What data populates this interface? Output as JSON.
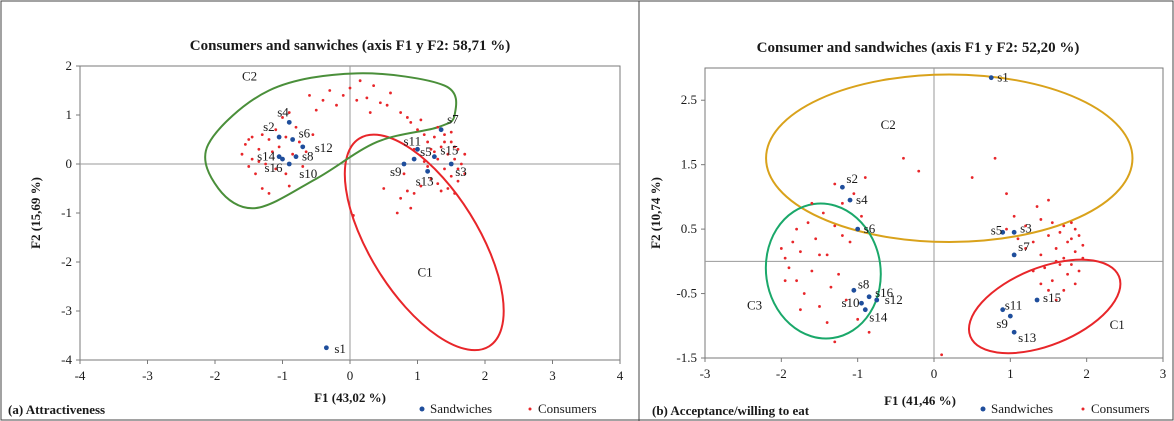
{
  "panels": [
    {
      "caption": "(a) Attractiveness",
      "legend": [
        "Sandwiches",
        "Consumers"
      ]
    },
    {
      "caption": "(b) Acceptance/willing to eat",
      "legend": [
        "Sandwiches",
        "Consumers"
      ]
    }
  ],
  "colors": {
    "sandwich": "#1f4e9c",
    "consumer": "#e8262a",
    "c1a": "#e8262a",
    "c2a": "#4a8f3a",
    "c1b": "#e8262a",
    "c2b": "#d9a21b",
    "c3b": "#1aa86a"
  },
  "chart_data": [
    {
      "type": "scatter",
      "title": "Consumers and sanwiches (axis F1 y F2: 58,71 %)",
      "xlabel": "F1 (43,02 %)",
      "ylabel": "F2 (15,69 %)",
      "xlim": [
        -4,
        4
      ],
      "ylim": [
        -4,
        2
      ],
      "xticks": [
        "-4",
        "-3",
        "-2",
        "-1",
        "0",
        "1",
        "2",
        "3",
        "4"
      ],
      "yticks": [
        "2",
        "1",
        "0",
        "-1",
        "-2",
        "-3",
        "-4"
      ],
      "legend": "bottom-right",
      "series": [
        {
          "name": "Sandwiches",
          "points": [
            {
              "label": "s1",
              "x": -0.35,
              "y": -3.75
            },
            {
              "label": "s2",
              "x": -1.05,
              "y": 0.55
            },
            {
              "label": "s3",
              "x": 1.5,
              "y": 0.0
            },
            {
              "label": "s4",
              "x": -0.9,
              "y": 0.85
            },
            {
              "label": "s5",
              "x": 0.95,
              "y": 0.1
            },
            {
              "label": "s6",
              "x": -0.85,
              "y": 0.5
            },
            {
              "label": "s7",
              "x": 1.35,
              "y": 0.7
            },
            {
              "label": "s8",
              "x": -0.8,
              "y": 0.15
            },
            {
              "label": "s9",
              "x": 0.8,
              "y": 0.0
            },
            {
              "label": "s10",
              "x": -0.9,
              "y": 0.0
            },
            {
              "label": "s11",
              "x": 1.0,
              "y": 0.3
            },
            {
              "label": "s12",
              "x": -0.7,
              "y": 0.35
            },
            {
              "label": "s13",
              "x": 1.15,
              "y": -0.15
            },
            {
              "label": "s14",
              "x": -1.05,
              "y": 0.15
            },
            {
              "label": "s15",
              "x": 1.25,
              "y": 0.15
            },
            {
              "label": "s16",
              "x": -1.0,
              "y": 0.1
            }
          ]
        },
        {
          "name": "Consumers",
          "points": [
            [
              -1.6,
              0.2
            ],
            [
              -1.55,
              0.4
            ],
            [
              -1.5,
              0.5
            ],
            [
              -1.45,
              0.1
            ],
            [
              -1.4,
              -0.2
            ],
            [
              -1.35,
              0.3
            ],
            [
              -1.3,
              0.6
            ],
            [
              -1.3,
              -0.5
            ],
            [
              -1.25,
              0.0
            ],
            [
              -1.2,
              0.5
            ],
            [
              -1.2,
              -0.6
            ],
            [
              -1.15,
              0.25
            ],
            [
              -1.1,
              0.7
            ],
            [
              -1.1,
              -0.1
            ],
            [
              -1.05,
              0.35
            ],
            [
              -1.0,
              0.95
            ],
            [
              -0.95,
              0.55
            ],
            [
              -0.95,
              -0.2
            ],
            [
              -0.9,
              1.05
            ],
            [
              -0.85,
              0.2
            ],
            [
              -0.8,
              0.75
            ],
            [
              -0.75,
              0.45
            ],
            [
              -0.7,
              -0.05
            ],
            [
              -0.6,
              1.4
            ],
            [
              -0.5,
              1.1
            ],
            [
              -0.4,
              1.3
            ],
            [
              -0.3,
              1.5
            ],
            [
              -0.2,
              1.2
            ],
            [
              -0.1,
              1.4
            ],
            [
              0.0,
              1.55
            ],
            [
              0.1,
              1.3
            ],
            [
              0.15,
              1.7
            ],
            [
              0.25,
              1.35
            ],
            [
              0.3,
              1.05
            ],
            [
              0.35,
              1.6
            ],
            [
              0.45,
              1.25
            ],
            [
              0.55,
              1.2
            ],
            [
              0.6,
              1.45
            ],
            [
              0.75,
              1.05
            ],
            [
              0.85,
              0.95
            ],
            [
              0.9,
              0.85
            ],
            [
              1.0,
              0.7
            ],
            [
              1.05,
              0.9
            ],
            [
              1.1,
              0.6
            ],
            [
              1.15,
              0.45
            ],
            [
              1.2,
              0.3
            ],
            [
              1.2,
              -0.3
            ],
            [
              1.25,
              0.55
            ],
            [
              1.3,
              0.1
            ],
            [
              1.3,
              -0.4
            ],
            [
              1.35,
              0.35
            ],
            [
              1.4,
              0.6
            ],
            [
              1.4,
              -0.1
            ],
            [
              1.45,
              0.2
            ],
            [
              1.45,
              -0.5
            ],
            [
              1.5,
              0.45
            ],
            [
              1.5,
              -0.25
            ],
            [
              1.55,
              0.1
            ],
            [
              1.55,
              -0.6
            ],
            [
              1.6,
              0.3
            ],
            [
              1.6,
              -0.35
            ],
            [
              1.65,
              0.0
            ],
            [
              1.7,
              0.2
            ],
            [
              1.7,
              -0.2
            ],
            [
              1.1,
              0.05
            ],
            [
              1.05,
              -0.45
            ],
            [
              0.95,
              -0.6
            ],
            [
              0.85,
              -0.55
            ],
            [
              0.8,
              -0.2
            ],
            [
              0.7,
              -1.0
            ],
            [
              0.75,
              -0.7
            ],
            [
              0.9,
              -0.9
            ],
            [
              1.3,
              0.75
            ],
            [
              1.35,
              -0.55
            ],
            [
              1.4,
              0.45
            ],
            [
              1.5,
              0.65
            ],
            [
              1.55,
              0.35
            ],
            [
              1.6,
              -0.1
            ],
            [
              1.25,
              0.25
            ],
            [
              1.15,
              -0.05
            ],
            [
              0.05,
              -1.05
            ],
            [
              0.5,
              -0.5
            ],
            [
              0.95,
              0.3
            ],
            [
              -1.5,
              -0.05
            ],
            [
              -1.45,
              0.55
            ],
            [
              -1.35,
              0.05
            ],
            [
              -0.65,
              0.25
            ],
            [
              -0.9,
              -0.45
            ],
            [
              -0.55,
              0.6
            ]
          ]
        }
      ],
      "clusters": [
        "C1",
        "C2"
      ]
    },
    {
      "type": "scatter",
      "title": "Consumer and sandwiches (axis F1 y F2: 52,20 %)",
      "xlabel": "F1 (41,46 %)",
      "ylabel": "F2 (10,74 %)",
      "xlim": [
        -3,
        3
      ],
      "ylim": [
        -1.5,
        3.0
      ],
      "xticks": [
        "-3",
        "-2",
        "-1",
        "0",
        "1",
        "2",
        "3"
      ],
      "yticks": [
        "2.5",
        "1.5",
        "0.5",
        "-0.5",
        "-1.5"
      ],
      "legend": "bottom-right",
      "series": [
        {
          "name": "Sandwiches",
          "points": [
            {
              "label": "s1",
              "x": 0.75,
              "y": 2.85
            },
            {
              "label": "s2",
              "x": -1.2,
              "y": 1.15
            },
            {
              "label": "s3",
              "x": 1.05,
              "y": 0.45
            },
            {
              "label": "s4",
              "x": -1.1,
              "y": 0.95
            },
            {
              "label": "s5",
              "x": 0.9,
              "y": 0.45
            },
            {
              "label": "s6",
              "x": -1.0,
              "y": 0.5
            },
            {
              "label": "s7",
              "x": 1.05,
              "y": 0.1
            },
            {
              "label": "s8",
              "x": -1.05,
              "y": -0.45
            },
            {
              "label": "s9",
              "x": 1.0,
              "y": -0.85
            },
            {
              "label": "s10",
              "x": -0.95,
              "y": -0.65
            },
            {
              "label": "s11",
              "x": 0.9,
              "y": -0.75
            },
            {
              "label": "s12",
              "x": -0.75,
              "y": -0.6
            },
            {
              "label": "s13",
              "x": 1.05,
              "y": -1.1
            },
            {
              "label": "s14",
              "x": -0.9,
              "y": -0.75
            },
            {
              "label": "s15",
              "x": 1.35,
              "y": -0.6
            },
            {
              "label": "s16",
              "x": -0.85,
              "y": -0.55
            }
          ]
        },
        {
          "name": "Consumers",
          "points": [
            [
              -2.0,
              0.2
            ],
            [
              -1.95,
              0.05
            ],
            [
              -1.9,
              -0.1
            ],
            [
              -1.85,
              0.3
            ],
            [
              -1.8,
              0.5
            ],
            [
              -1.8,
              -0.3
            ],
            [
              -1.75,
              0.15
            ],
            [
              -1.7,
              -0.5
            ],
            [
              -1.65,
              0.6
            ],
            [
              -1.6,
              -0.15
            ],
            [
              -1.55,
              0.35
            ],
            [
              -1.5,
              -0.7
            ],
            [
              -1.45,
              0.75
            ],
            [
              -1.4,
              0.1
            ],
            [
              -1.35,
              -0.4
            ],
            [
              -1.3,
              0.55
            ],
            [
              -1.3,
              1.2
            ],
            [
              -1.25,
              -0.2
            ],
            [
              -1.2,
              0.9
            ],
            [
              -1.15,
              -0.6
            ],
            [
              -1.1,
              0.3
            ],
            [
              -1.05,
              1.05
            ],
            [
              -1.0,
              -0.9
            ],
            [
              -0.95,
              0.7
            ],
            [
              -0.9,
              1.3
            ],
            [
              -0.85,
              -1.1
            ],
            [
              -1.4,
              -0.95
            ],
            [
              -1.3,
              -1.25
            ],
            [
              -1.6,
              0.9
            ],
            [
              -1.75,
              -0.75
            ],
            [
              -0.4,
              1.6
            ],
            [
              -0.2,
              1.4
            ],
            [
              0.5,
              1.3
            ],
            [
              0.8,
              1.6
            ],
            [
              0.95,
              1.05
            ],
            [
              1.05,
              0.7
            ],
            [
              1.2,
              0.55
            ],
            [
              1.3,
              0.3
            ],
            [
              1.35,
              0.85
            ],
            [
              1.4,
              0.1
            ],
            [
              1.45,
              -0.1
            ],
            [
              1.5,
              0.4
            ],
            [
              1.55,
              0.6
            ],
            [
              1.55,
              -0.3
            ],
            [
              1.6,
              0.2
            ],
            [
              1.6,
              -0.6
            ],
            [
              1.65,
              0.45
            ],
            [
              1.7,
              0.05
            ],
            [
              1.7,
              -0.45
            ],
            [
              1.75,
              0.3
            ],
            [
              1.75,
              -0.2
            ],
            [
              1.8,
              0.6
            ],
            [
              1.8,
              -0.05
            ],
            [
              1.85,
              0.15
            ],
            [
              1.85,
              -0.35
            ],
            [
              1.9,
              0.4
            ],
            [
              1.9,
              -0.15
            ],
            [
              1.95,
              0.05
            ],
            [
              1.95,
              0.25
            ],
            [
              1.5,
              0.95
            ],
            [
              1.4,
              0.65
            ],
            [
              1.3,
              -0.15
            ],
            [
              1.2,
              0.2
            ],
            [
              1.1,
              0.35
            ],
            [
              0.95,
              0.5
            ],
            [
              0.1,
              -1.45
            ],
            [
              1.65,
              -0.05
            ],
            [
              1.8,
              0.35
            ],
            [
              1.7,
              0.55
            ],
            [
              1.6,
              0.0
            ],
            [
              1.85,
              0.5
            ],
            [
              1.5,
              -0.45
            ],
            [
              1.4,
              -0.35
            ],
            [
              -1.2,
              0.4
            ],
            [
              -1.5,
              0.1
            ],
            [
              -1.95,
              -0.3
            ]
          ]
        }
      ],
      "clusters": [
        "C1",
        "C2",
        "C3"
      ]
    }
  ]
}
